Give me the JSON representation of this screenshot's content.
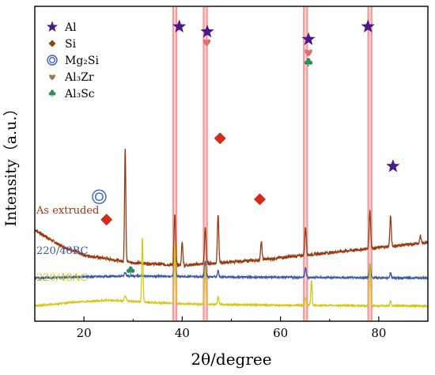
{
  "chart_data": {
    "type": "line",
    "title": "",
    "xlabel": "2θ/degree",
    "ylabel": "Intensity（a.u.）",
    "xlim": [
      10,
      90
    ],
    "xticks": [
      20,
      40,
      60,
      80
    ],
    "xtick_labels": [
      "20",
      "40",
      "60",
      "80"
    ],
    "y_ticks_shown": false,
    "grid": false,
    "legend": {
      "placement": "top-left",
      "entries": [
        {
          "symbol": "star",
          "color": "#4a1a8c",
          "label": "Al"
        },
        {
          "symbol": "diamond",
          "color": "#8b4a0a",
          "label": "Si"
        },
        {
          "symbol": "double-circle",
          "color": "#3a5fd0",
          "label": "Mg₂Si"
        },
        {
          "symbol": "heart",
          "color": "#a07850",
          "label": "Al₃Zr"
        },
        {
          "symbol": "club",
          "color": "#2f8a5a",
          "label": "Al₃Sc"
        }
      ]
    },
    "highlight_bands": {
      "color": "#f08a8a",
      "x": [
        38.5,
        44.7,
        65.1,
        78.2
      ]
    },
    "series": [
      {
        "name": "As extruded",
        "color": "#9a3a10",
        "baseline": 30,
        "noise": 0.6,
        "slope": [
          [
            10,
            0
          ],
          [
            15,
            -6
          ],
          [
            20,
            -10
          ],
          [
            30,
            -13
          ],
          [
            40,
            -14
          ],
          [
            55,
            -12
          ],
          [
            70,
            -9
          ],
          [
            90,
            -5
          ]
        ],
        "peaks": [
          {
            "x": 28.4,
            "h": 45,
            "w": 0.18
          },
          {
            "x": 38.5,
            "h": 20,
            "w": 0.22
          },
          {
            "x": 40.0,
            "h": 9,
            "w": 0.2
          },
          {
            "x": 44.7,
            "h": 14,
            "w": 0.22
          },
          {
            "x": 47.3,
            "h": 19,
            "w": 0.2
          },
          {
            "x": 56.1,
            "h": 7,
            "w": 0.2
          },
          {
            "x": 65.1,
            "h": 11,
            "w": 0.22
          },
          {
            "x": 78.2,
            "h": 15,
            "w": 0.22
          },
          {
            "x": 82.4,
            "h": 12,
            "w": 0.2
          },
          {
            "x": 88.5,
            "h": 3,
            "w": 0.2
          }
        ]
      },
      {
        "name": "220/48BC",
        "color": "#3a5aa8",
        "baseline": 11,
        "noise": 0.35,
        "slope": [
          [
            10,
            0
          ],
          [
            20,
            0.5
          ],
          [
            30,
            0.8
          ],
          [
            50,
            0.4
          ],
          [
            90,
            0
          ]
        ],
        "peaks": [
          {
            "x": 28.4,
            "h": 1.5,
            "w": 0.25
          },
          {
            "x": 38.5,
            "h": 8,
            "w": 0.22
          },
          {
            "x": 44.7,
            "h": 6,
            "w": 0.22
          },
          {
            "x": 47.3,
            "h": 2.5,
            "w": 0.2
          },
          {
            "x": 65.1,
            "h": 3.5,
            "w": 0.22
          },
          {
            "x": 78.2,
            "h": 5,
            "w": 0.22
          },
          {
            "x": 82.4,
            "h": 2,
            "w": 0.2
          }
        ]
      },
      {
        "name": "220/48AC",
        "color": "#d4c818",
        "baseline": 0,
        "noise": 0.3,
        "slope": [
          [
            10,
            0
          ],
          [
            18,
            1.5
          ],
          [
            25,
            2.2
          ],
          [
            30,
            1.8
          ],
          [
            40,
            0.8
          ],
          [
            60,
            0.3
          ],
          [
            90,
            0
          ]
        ],
        "peaks": [
          {
            "x": 28.4,
            "h": 2,
            "w": 0.3
          },
          {
            "x": 31.9,
            "h": 25,
            "w": 0.18
          },
          {
            "x": 38.5,
            "h": 24,
            "w": 0.2
          },
          {
            "x": 44.7,
            "h": 15,
            "w": 0.2
          },
          {
            "x": 47.3,
            "h": 3,
            "w": 0.2
          },
          {
            "x": 65.1,
            "h": 3,
            "w": 0.2
          },
          {
            "x": 66.3,
            "h": 10,
            "w": 0.18
          },
          {
            "x": 78.2,
            "h": 16,
            "w": 0.2
          },
          {
            "x": 82.4,
            "h": 2,
            "w": 0.2
          }
        ]
      }
    ],
    "phase_markers": [
      {
        "symbol": "star",
        "color": "#4a1a8c",
        "x": 39.4,
        "y": 110
      },
      {
        "symbol": "star",
        "color": "#4a1a8c",
        "x": 45.1,
        "y": 108
      },
      {
        "symbol": "star",
        "color": "#4a1a8c",
        "x": 65.7,
        "y": 105
      },
      {
        "symbol": "star",
        "color": "#4a1a8c",
        "x": 77.8,
        "y": 110
      },
      {
        "symbol": "star",
        "color": "#4a1a8c",
        "x": 82.9,
        "y": 55
      },
      {
        "symbol": "diamond",
        "color": "#d42a1a",
        "x": 24.6,
        "y": 34
      },
      {
        "symbol": "diamond",
        "color": "#d42a1a",
        "x": 47.7,
        "y": 66
      },
      {
        "symbol": "diamond",
        "color": "#d42a1a",
        "x": 55.8,
        "y": 42
      },
      {
        "symbol": "double-circle",
        "color": "#3a5fd0",
        "x": 23.1,
        "y": 43
      },
      {
        "symbol": "heart",
        "color": "#e07070",
        "x": 45.0,
        "y": 104
      },
      {
        "symbol": "heart",
        "color": "#e07070",
        "x": 65.7,
        "y": 100
      },
      {
        "symbol": "club",
        "color": "#2f8a5a",
        "x": 65.7,
        "y": 96
      },
      {
        "symbol": "club",
        "color": "#2f8a5a",
        "x": 29.5,
        "y": 14
      }
    ]
  }
}
